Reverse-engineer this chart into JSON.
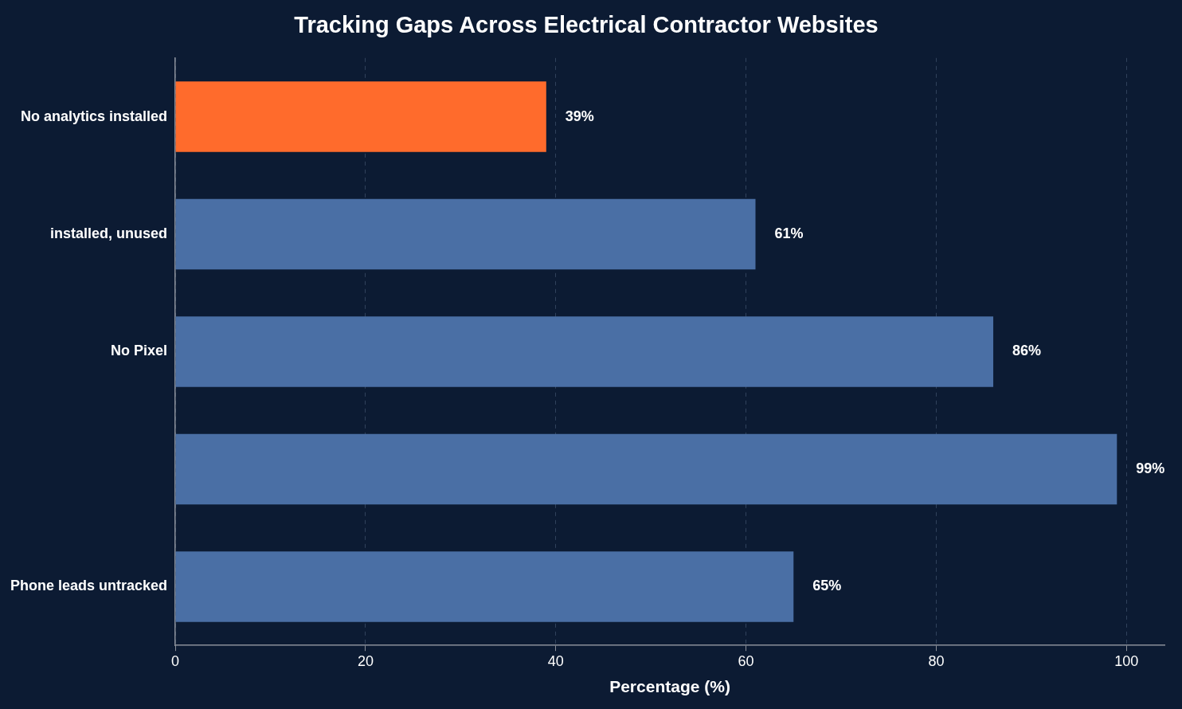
{
  "chart_data": {
    "type": "bar",
    "orientation": "horizontal",
    "title": "Tracking Gaps Across Electrical Contractor Websites",
    "xlabel": "Percentage (%)",
    "categories": [
      "No analytics installed",
      "installed, unused",
      "No Pixel",
      null,
      "Phone leads untracked"
    ],
    "values": [
      39,
      61,
      86,
      99,
      65
    ],
    "colors": [
      "#ff6b2c",
      "#4a6fa5",
      "#4a6fa5",
      "#4a6fa5",
      "#4a6fa5"
    ],
    "value_labels": [
      "39%",
      "61%",
      "86%",
      "99%",
      "65%"
    ],
    "xlim": [
      0,
      104
    ],
    "xticks": [
      0,
      20,
      40,
      60,
      80,
      100
    ],
    "grid": "x",
    "legend": false
  }
}
